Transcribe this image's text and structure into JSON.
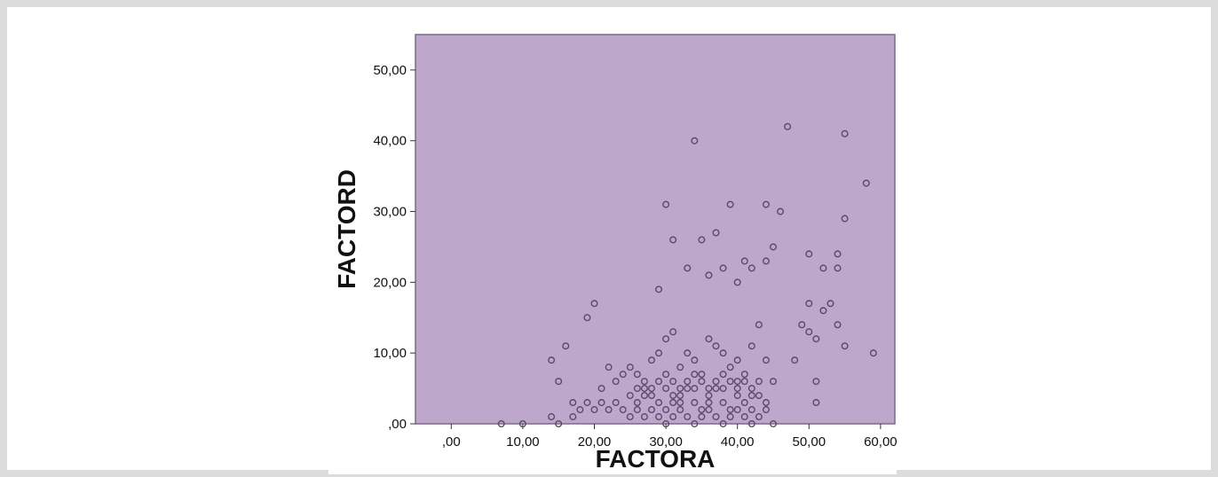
{
  "chart_data": {
    "type": "scatter",
    "title": "",
    "xlabel": "FACTORA",
    "ylabel": "FACTORD",
    "xlim": [
      -5,
      62
    ],
    "ylim": [
      0,
      55
    ],
    "xticks": [
      0,
      10,
      20,
      30,
      40,
      50,
      60
    ],
    "xtick_labels": [
      ",00",
      "10,00",
      "20,00",
      "30,00",
      "40,00",
      "50,00",
      "60,00"
    ],
    "yticks": [
      0,
      10,
      20,
      30,
      40,
      50
    ],
    "ytick_labels": [
      ",00",
      "10,00",
      "20,00",
      "30,00",
      "40,00",
      "50,00"
    ],
    "grid": false,
    "legend": "none",
    "colors": {
      "plot_background": "#bda8cb",
      "marker_edge": "#5a4a66",
      "axis": "#7a6a88"
    },
    "points": [
      [
        7,
        0
      ],
      [
        10,
        0
      ],
      [
        14,
        1
      ],
      [
        15,
        0
      ],
      [
        17,
        1
      ],
      [
        18,
        2
      ],
      [
        19,
        3
      ],
      [
        20,
        2
      ],
      [
        21,
        3
      ],
      [
        22,
        2
      ],
      [
        23,
        3
      ],
      [
        24,
        2
      ],
      [
        25,
        4
      ],
      [
        26,
        5
      ],
      [
        27,
        5
      ],
      [
        28,
        4
      ],
      [
        29,
        3
      ],
      [
        30,
        2
      ],
      [
        31,
        3
      ],
      [
        32,
        4
      ],
      [
        33,
        5
      ],
      [
        34,
        3
      ],
      [
        35,
        2
      ],
      [
        36,
        4
      ],
      [
        37,
        5
      ],
      [
        38,
        3
      ],
      [
        39,
        2
      ],
      [
        40,
        4
      ],
      [
        41,
        3
      ],
      [
        42,
        2
      ],
      [
        43,
        1
      ],
      [
        44,
        2
      ],
      [
        45,
        0
      ],
      [
        14,
        9
      ],
      [
        15,
        6
      ],
      [
        16,
        11
      ],
      [
        17,
        3
      ],
      [
        19,
        15
      ],
      [
        20,
        17
      ],
      [
        21,
        5
      ],
      [
        22,
        8
      ],
      [
        23,
        6
      ],
      [
        24,
        7
      ],
      [
        25,
        8
      ],
      [
        26,
        7
      ],
      [
        27,
        6
      ],
      [
        28,
        9
      ],
      [
        29,
        10
      ],
      [
        30,
        12
      ],
      [
        31,
        13
      ],
      [
        32,
        8
      ],
      [
        33,
        10
      ],
      [
        34,
        9
      ],
      [
        35,
        7
      ],
      [
        36,
        12
      ],
      [
        37,
        11
      ],
      [
        38,
        10
      ],
      [
        39,
        8
      ],
      [
        40,
        9
      ],
      [
        41,
        7
      ],
      [
        42,
        11
      ],
      [
        43,
        6
      ],
      [
        44,
        9
      ],
      [
        45,
        6
      ],
      [
        29,
        19
      ],
      [
        30,
        31
      ],
      [
        31,
        26
      ],
      [
        33,
        22
      ],
      [
        34,
        40
      ],
      [
        35,
        26
      ],
      [
        36,
        21
      ],
      [
        37,
        27
      ],
      [
        38,
        22
      ],
      [
        39,
        31
      ],
      [
        40,
        20
      ],
      [
        41,
        23
      ],
      [
        42,
        22
      ],
      [
        43,
        14
      ],
      [
        44,
        31
      ],
      [
        44,
        23
      ],
      [
        45,
        25
      ],
      [
        46,
        30
      ],
      [
        47,
        42
      ],
      [
        48,
        9
      ],
      [
        49,
        14
      ],
      [
        50,
        24
      ],
      [
        50,
        17
      ],
      [
        50,
        13
      ],
      [
        51,
        12
      ],
      [
        51,
        6
      ],
      [
        51,
        3
      ],
      [
        52,
        22
      ],
      [
        52,
        16
      ],
      [
        53,
        17
      ],
      [
        54,
        14
      ],
      [
        54,
        22
      ],
      [
        54,
        24
      ],
      [
        55,
        29
      ],
      [
        55,
        41
      ],
      [
        55,
        11
      ],
      [
        58,
        34
      ],
      [
        59,
        10
      ],
      [
        25,
        1
      ],
      [
        26,
        2
      ],
      [
        27,
        1
      ],
      [
        28,
        2
      ],
      [
        29,
        1
      ],
      [
        30,
        0
      ],
      [
        31,
        1
      ],
      [
        32,
        2
      ],
      [
        33,
        1
      ],
      [
        34,
        0
      ],
      [
        35,
        1
      ],
      [
        36,
        2
      ],
      [
        37,
        1
      ],
      [
        38,
        0
      ],
      [
        39,
        1
      ],
      [
        40,
        2
      ],
      [
        41,
        1
      ],
      [
        42,
        0
      ],
      [
        26,
        3
      ],
      [
        27,
        4
      ],
      [
        28,
        5
      ],
      [
        29,
        6
      ],
      [
        30,
        7
      ],
      [
        31,
        6
      ],
      [
        32,
        5
      ],
      [
        33,
        6
      ],
      [
        34,
        7
      ],
      [
        35,
        6
      ],
      [
        36,
        5
      ],
      [
        37,
        6
      ],
      [
        38,
        7
      ],
      [
        39,
        6
      ],
      [
        40,
        5
      ],
      [
        41,
        6
      ],
      [
        42,
        5
      ],
      [
        43,
        4
      ],
      [
        44,
        3
      ],
      [
        30,
        5
      ],
      [
        31,
        4
      ],
      [
        32,
        3
      ],
      [
        34,
        5
      ],
      [
        36,
        3
      ],
      [
        38,
        5
      ],
      [
        40,
        6
      ],
      [
        42,
        4
      ]
    ]
  }
}
